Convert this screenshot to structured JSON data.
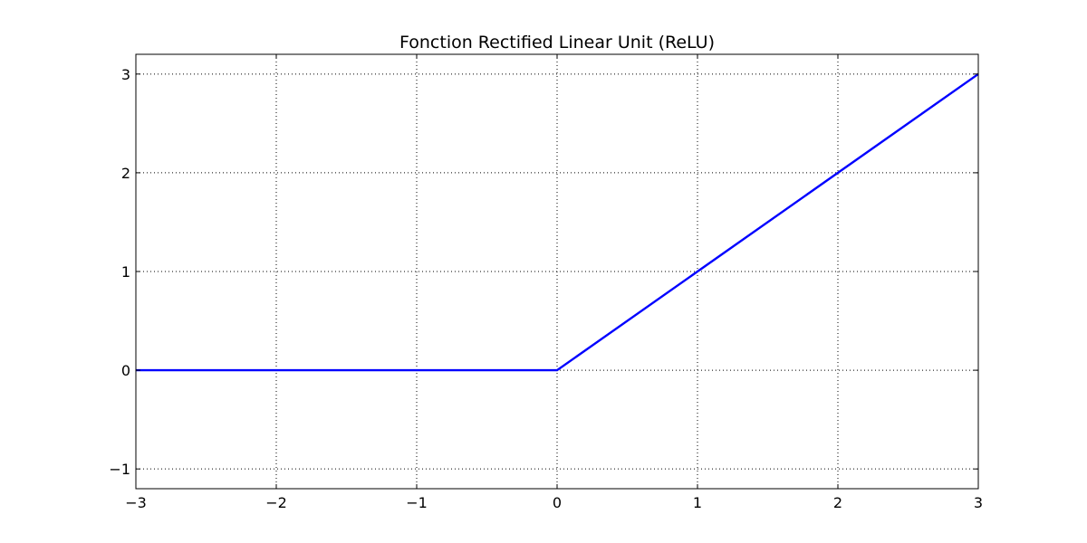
{
  "chart_data": {
    "type": "line",
    "title": "Fonction Rectified Linear Unit (ReLU)",
    "xlabel": "",
    "ylabel": "",
    "xlim": [
      -3,
      3
    ],
    "ylim": [
      -1.2,
      3.2
    ],
    "x_ticks": [
      -3,
      -2,
      -1,
      0,
      1,
      2,
      3
    ],
    "x_tick_labels": [
      "−3",
      "−2",
      "−1",
      "0",
      "1",
      "2",
      "3"
    ],
    "y_ticks": [
      -1,
      0,
      1,
      2,
      3
    ],
    "y_tick_labels": [
      "−1",
      "0",
      "1",
      "2",
      "3"
    ],
    "grid": true,
    "legend": "none",
    "series": [
      {
        "color": "#0000ff",
        "x": [
          -3,
          0,
          3
        ],
        "y": [
          0,
          0,
          3
        ]
      }
    ]
  }
}
